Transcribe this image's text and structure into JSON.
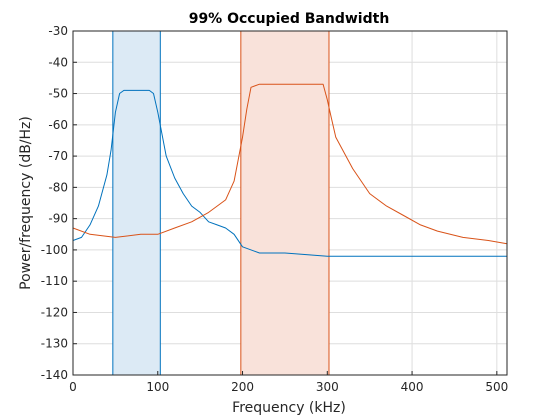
{
  "chart_data": {
    "type": "line",
    "title": "99% Occupied Bandwidth",
    "xlabel": "Frequency (kHz)",
    "ylabel": "Power/frequency (dB/Hz)",
    "xlim": [
      0,
      512
    ],
    "ylim": [
      -140,
      -30
    ],
    "xticks": [
      0,
      100,
      200,
      300,
      400,
      500
    ],
    "yticks": [
      -140,
      -130,
      -120,
      -110,
      -100,
      -90,
      -80,
      -70,
      -60,
      -50,
      -40,
      -30
    ],
    "xtick_labels": [
      "0",
      "100",
      "200",
      "300",
      "400",
      "500"
    ],
    "ytick_labels": [
      "-140",
      "-130",
      "-120",
      "-110",
      "-100",
      "-90",
      "-80",
      "-70",
      "-60",
      "-50",
      "-40",
      "-30"
    ],
    "grid": true,
    "bands": [
      {
        "x": [
          47,
          103
        ],
        "fill": "#dceaf5",
        "edge": "#0072bd"
      },
      {
        "x": [
          198,
          302
        ],
        "fill": "#f9e2da",
        "edge": "#d95319"
      }
    ],
    "series": [
      {
        "color": "#0072bd",
        "x": [
          0,
          10,
          20,
          30,
          40,
          45,
          50,
          55,
          60,
          70,
          80,
          90,
          95,
          100,
          105,
          110,
          120,
          130,
          140,
          150,
          160,
          170,
          180,
          190,
          200,
          220,
          250,
          300,
          350,
          400,
          450,
          500,
          512
        ],
        "y": [
          -97,
          -96,
          -92,
          -86,
          -76,
          -68,
          -56,
          -50,
          -49,
          -49,
          -49,
          -49,
          -50,
          -56,
          -63,
          -70,
          -77,
          -82,
          -86,
          -88,
          -91,
          -92,
          -93,
          -95,
          -99,
          -101,
          -101,
          -102,
          -102,
          -102,
          -102,
          -102,
          -102
        ]
      },
      {
        "color": "#d95319",
        "x": [
          0,
          20,
          50,
          80,
          100,
          120,
          140,
          160,
          180,
          190,
          200,
          205,
          210,
          220,
          240,
          260,
          280,
          295,
          300,
          305,
          310,
          330,
          350,
          370,
          390,
          410,
          430,
          460,
          490,
          512
        ],
        "y": [
          -93,
          -95,
          -96,
          -95,
          -95,
          -93,
          -91,
          -88,
          -84,
          -78,
          -64,
          -55,
          -48,
          -47,
          -47,
          -47,
          -47,
          -47,
          -52,
          -58,
          -64,
          -74,
          -82,
          -86,
          -89,
          -92,
          -94,
          -96,
          -97,
          -98
        ]
      }
    ]
  }
}
